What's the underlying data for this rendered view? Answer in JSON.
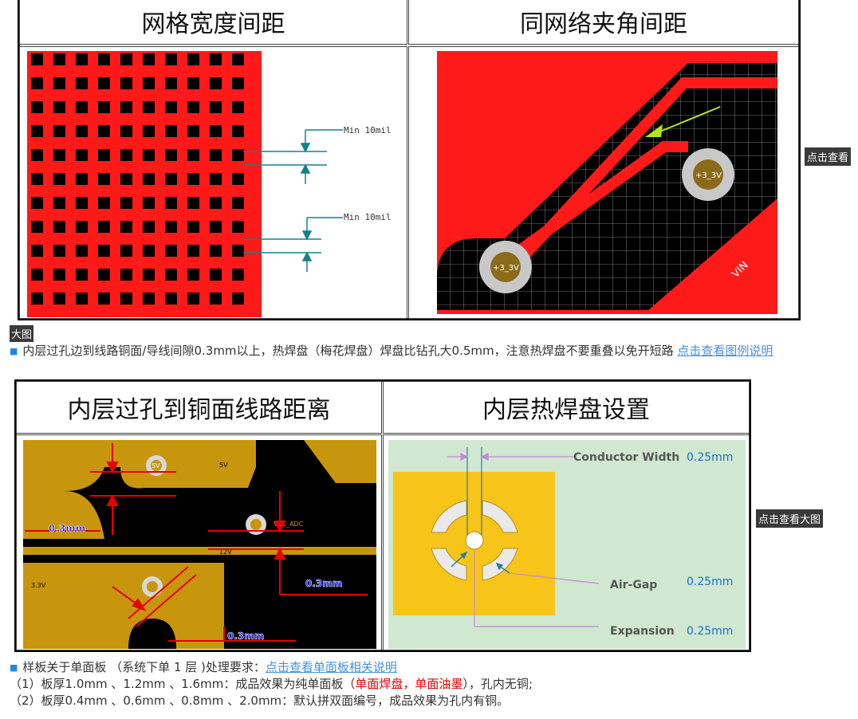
{
  "top_table": {
    "left_title": "网格宽度间距",
    "right_title": "同网络夹角间距",
    "min_label_1": "Min 10mil",
    "min_label_2": "Min 10mil",
    "pad_label_1": "+3_3V",
    "pad_label_2": "+3_3V",
    "net_label": "VIN",
    "view_button": "点击查看"
  },
  "big_image_label": "大图",
  "note_1": {
    "text": "内层过孔边到线路铜面/导线间隙0.3mm以上，热焊盘（梅花焊盘）焊盘比钻孔大0.5mm，注意热焊盘不要重叠以免开短路 ",
    "link": "点击查看图例说明"
  },
  "bottom_table": {
    "left_title": "内层过孔到铜面线路距离",
    "right_title": "内层热焊盘设置",
    "dim_1": "0.3mm",
    "dim_2": "0.3mm",
    "dim_3": "0.3mm",
    "via_label": "5V",
    "trace_label_5v": "5V",
    "trace_label_12v": "12V",
    "trace_label_adc": "VOL_ADC",
    "trace_label_33": "3.3V",
    "conductor_label": "Conductor Width",
    "conductor_value": "0.25mm",
    "airgap_label": "Air-Gap",
    "airgap_value": "0.25mm",
    "expansion_label": "Expansion",
    "expansion_value": "0.25mm",
    "view_button": "点击查看大图"
  },
  "note_2": {
    "prefix": "样板关于单面板 （系统下单 1 层 )处理要求：",
    "link": "点击查看单面板相关说明",
    "line1_pre": "（1）板厚1.0mm 、1.2mm 、1.6mm：成品效果为纯单面板（",
    "line1_red": "单面焊盘，单面油墨",
    "line1_post": "），孔内无铜;",
    "line2": "（2）板厚0.4mm 、0.6mm 、0.8mm 、2.0mm：默认拼双面编号，成品效果为孔内有铜。"
  },
  "colors": {
    "pcb_red": "#ff1a1a",
    "pcb_black": "#000000",
    "inner_gold": "#c8960c",
    "thermal_yellow": "#f7c41a",
    "thermal_bg": "#cfe8cf",
    "dim_teal": "#13808a",
    "link_blue": "#4a90d9"
  }
}
